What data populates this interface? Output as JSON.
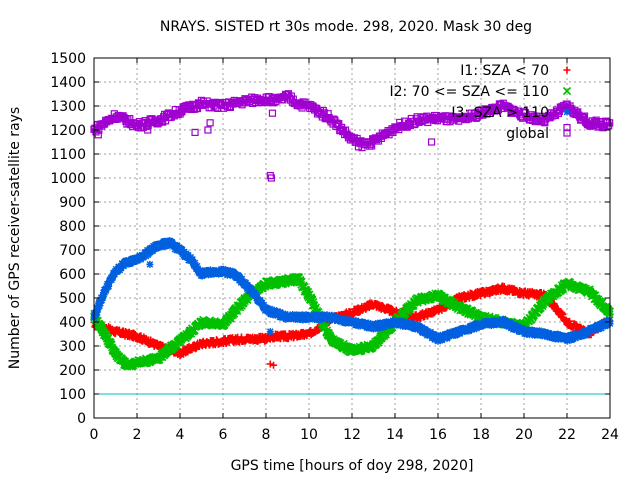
{
  "chart_data": {
    "type": "scatter",
    "title": "NRAYS. SISTED rt 30s mode. 298, 2020. Mask 30 deg",
    "xlabel": "GPS time [hours of doy 298, 2020]",
    "ylabel": "Number of GPS receiver-satellite rays",
    "xlim": [
      0,
      24
    ],
    "ylim": [
      0,
      1500
    ],
    "xticks": [
      "0",
      "2",
      "4",
      "6",
      "8",
      "10",
      "12",
      "14",
      "16",
      "18",
      "20",
      "22",
      "24"
    ],
    "yticks": [
      "0",
      "100",
      "200",
      "300",
      "400",
      "500",
      "600",
      "700",
      "800",
      "900",
      "1000",
      "1100",
      "1200",
      "1300",
      "1400",
      "1500"
    ],
    "grid": true,
    "legend_position": "top-right",
    "threshold_line": {
      "y": 100,
      "color": "#00c0c0"
    },
    "series": [
      {
        "name": "I1: SZA < 70",
        "marker": "+",
        "color": "#ff0000",
        "x": [
          0,
          1,
          2,
          3,
          4,
          5,
          6,
          7,
          8,
          8.3,
          9,
          10,
          11,
          12,
          13,
          14,
          15,
          16,
          17,
          18,
          19,
          20,
          21,
          22,
          23,
          24
        ],
        "y": [
          390,
          360,
          340,
          300,
          270,
          310,
          320,
          330,
          330,
          340,
          340,
          350,
          410,
          440,
          475,
          440,
          420,
          450,
          500,
          520,
          540,
          520,
          510,
          400,
          350,
          410
        ]
      },
      {
        "name": "I2: 70 <= SZA <= 110",
        "marker": "x",
        "color": "#00c000",
        "x": [
          0,
          1,
          1.5,
          2,
          3,
          4,
          5,
          6,
          7,
          8,
          9,
          9.5,
          10,
          11,
          12,
          13,
          14,
          15,
          16,
          17,
          18,
          19,
          20,
          21,
          22,
          23,
          24
        ],
        "y": [
          430,
          270,
          220,
          230,
          250,
          320,
          400,
          390,
          490,
          560,
          570,
          580,
          510,
          330,
          280,
          300,
          400,
          490,
          510,
          460,
          420,
          400,
          380,
          490,
          560,
          530,
          440
        ]
      },
      {
        "name": "I3: SZA > 110",
        "marker": "*",
        "color": "#0060e0",
        "x": [
          0,
          0.5,
          1,
          1.5,
          2,
          2.5,
          3,
          3.5,
          4,
          4.5,
          5,
          5.5,
          6,
          6.5,
          7,
          7.5,
          8,
          9,
          10,
          11,
          12,
          13,
          14,
          15,
          16,
          17,
          18,
          19,
          20,
          21,
          22,
          23,
          24
        ],
        "y": [
          420,
          530,
          610,
          650,
          660,
          690,
          720,
          730,
          700,
          660,
          600,
          610,
          610,
          600,
          560,
          510,
          450,
          420,
          420,
          420,
          400,
          380,
          400,
          380,
          330,
          360,
          390,
          400,
          360,
          350,
          330,
          360,
          400
        ]
      },
      {
        "name": "global",
        "marker": "square",
        "color": "#a000d0",
        "x": [
          0,
          0.5,
          1,
          2,
          3,
          4,
          5,
          6,
          7,
          8,
          8.5,
          9,
          9.5,
          10,
          11,
          12,
          12.5,
          13,
          14,
          15,
          16,
          17,
          18,
          19,
          20,
          21,
          22,
          23,
          24
        ],
        "y": [
          1200,
          1230,
          1260,
          1220,
          1240,
          1280,
          1310,
          1300,
          1320,
          1330,
          1320,
          1340,
          1310,
          1300,
          1250,
          1160,
          1140,
          1150,
          1210,
          1240,
          1250,
          1240,
          1270,
          1300,
          1260,
          1240,
          1300,
          1230,
          1220
        ]
      }
    ],
    "outliers": {
      "global": [
        [
          8.2,
          1010
        ],
        [
          8.25,
          1000
        ],
        [
          8.3,
          1270
        ],
        [
          0.2,
          1180
        ],
        [
          2.5,
          1200
        ],
        [
          4.7,
          1190
        ],
        [
          5.3,
          1200
        ],
        [
          5.4,
          1230
        ],
        [
          12.3,
          1130
        ],
        [
          15.7,
          1150
        ],
        [
          22,
          1210
        ]
      ],
      "I1: SZA < 70": [
        [
          8.2,
          225
        ],
        [
          8.35,
          220
        ]
      ],
      "I3: SZA > 110": [
        [
          2.6,
          640
        ],
        [
          8.2,
          360
        ],
        [
          5.1,
          600
        ]
      ]
    }
  }
}
